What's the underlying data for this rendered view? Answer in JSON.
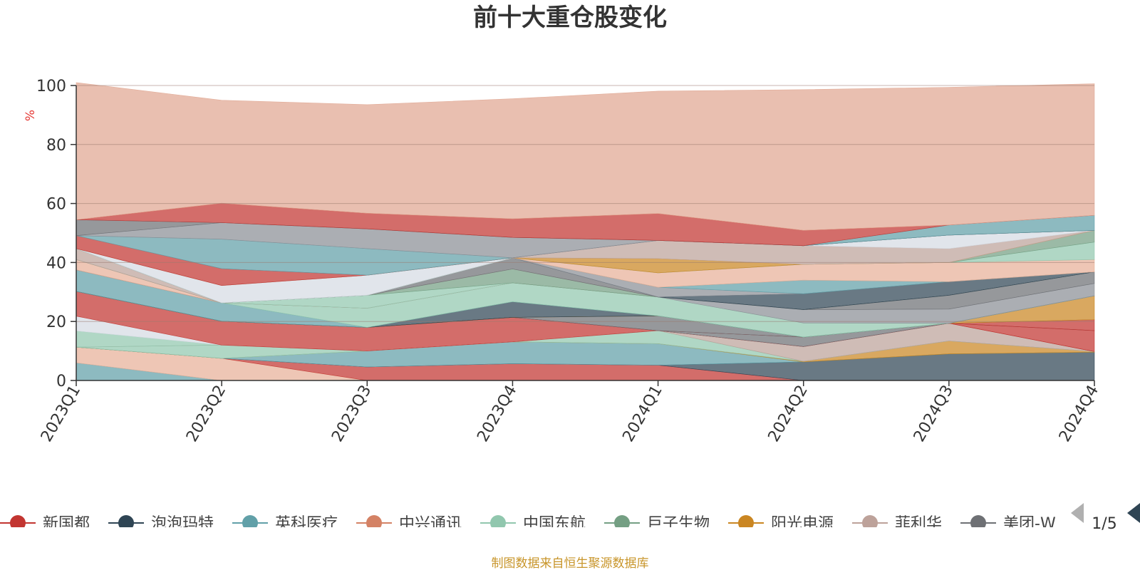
{
  "chart_data": {
    "type": "area",
    "title": "前十大重仓股变化",
    "ylabel": "%",
    "ylim": [
      0,
      100
    ],
    "y_ticks": [
      0,
      20,
      40,
      60,
      80,
      100
    ],
    "categories": [
      "2023Q1",
      "2023Q2",
      "2023Q3",
      "2023Q4",
      "2024Q1",
      "2024Q2",
      "2024Q3",
      "2024Q4"
    ],
    "stacked_to_100": true,
    "grid": true,
    "legend_position": "bottom",
    "source": "制图数据来自恒生聚源数据库",
    "legend_page": "1/5",
    "series": [
      {
        "name": "新国都",
        "color": "#c23531"
      },
      {
        "name": "泡泡玛特",
        "color": "#2f4554"
      },
      {
        "name": "英科医疗",
        "color": "#61a0a8"
      },
      {
        "name": "中兴通讯",
        "color": "#d48265"
      },
      {
        "name": "中国东航",
        "color": "#91c7ae"
      },
      {
        "name": "巨子生物",
        "color": "#749f83"
      },
      {
        "name": "阳光电源",
        "color": "#ca8622"
      },
      {
        "name": "菲利华",
        "color": "#bda29a"
      },
      {
        "name": "美团-W",
        "color": "#6e7074"
      }
    ],
    "bands": [
      {
        "color": "#61a0a8",
        "values": [
          6,
          0,
          0,
          0,
          0,
          0,
          0,
          0
        ]
      },
      {
        "color": "#e8b098",
        "values": [
          5.3,
          7.5,
          0,
          0,
          0,
          0,
          0,
          0
        ]
      },
      {
        "color": "#c23531",
        "values": [
          0,
          0,
          4.6,
          5.7,
          5.2,
          0,
          0,
          0
        ]
      },
      {
        "color": "#2f4554",
        "values": [
          0,
          0,
          0,
          0,
          0,
          6.3,
          9,
          9.6
        ]
      },
      {
        "color": "#61a0a8",
        "values": [
          0,
          0,
          5.4,
          7.4,
          7.3,
          0,
          0,
          0
        ]
      },
      {
        "color": "#ca8622",
        "values": [
          0,
          0,
          0,
          0,
          0,
          0.2,
          4.4,
          0.2
        ]
      },
      {
        "color": "#91c7ae",
        "values": [
          0,
          0,
          0,
          0,
          4.4,
          0,
          0,
          0
        ]
      },
      {
        "color": "#91c7ae",
        "values": [
          0,
          4.5,
          0,
          0,
          0,
          0,
          0,
          0
        ]
      },
      {
        "color": "#bda29a",
        "values": [
          0,
          0,
          0,
          0,
          0,
          5,
          6,
          0
        ]
      },
      {
        "color": "#91c7ae",
        "values": [
          5.5,
          0,
          0,
          0,
          0,
          0,
          0,
          0
        ]
      },
      {
        "color": "#d6dbe3",
        "values": [
          5,
          0,
          0,
          0,
          0,
          0,
          0,
          0
        ]
      },
      {
        "color": "#c23531",
        "values": [
          8.4,
          8.1,
          8,
          8.3,
          0,
          0,
          0,
          0
        ]
      },
      {
        "color": "#c23531",
        "values": [
          0,
          0,
          0,
          0,
          0,
          0,
          0,
          7.1
        ]
      },
      {
        "color": "#6e7074",
        "values": [
          0,
          0,
          0,
          0,
          0,
          3.2,
          0,
          0
        ]
      },
      {
        "color": "#c23531",
        "values": [
          0,
          0,
          0,
          0,
          0,
          0,
          0,
          3.7
        ]
      },
      {
        "color": "#6e7074",
        "values": [
          0,
          0,
          0,
          0,
          5,
          0,
          0,
          0
        ]
      },
      {
        "color": "#ca8622",
        "values": [
          0,
          0,
          0,
          0,
          0,
          0,
          0,
          8.1
        ]
      },
      {
        "color": "#2f4554",
        "values": [
          0,
          0,
          0,
          5.3,
          0,
          0,
          0,
          0
        ]
      },
      {
        "color": "#61a0a8",
        "values": [
          7.3,
          6.2,
          0,
          0,
          0,
          0,
          0,
          0
        ]
      },
      {
        "color": "#91c7ae",
        "values": [
          0,
          0,
          6.5,
          6.4,
          6.4,
          4.8,
          0,
          0
        ]
      },
      {
        "color": "#8b8f96",
        "values": [
          0,
          0,
          0,
          0,
          0,
          4.5,
          4.8,
          4.2
        ]
      },
      {
        "color": "#6e7074",
        "values": [
          0,
          0,
          0,
          0,
          0,
          0,
          4.7,
          3.9
        ]
      },
      {
        "color": "#e8b098",
        "values": [
          3.5,
          0,
          0,
          0,
          0,
          0,
          0,
          0
        ]
      },
      {
        "color": "#91c7ae",
        "values": [
          0,
          0,
          4.4,
          0,
          0,
          0,
          0,
          0
        ]
      },
      {
        "color": "#749f83",
        "values": [
          0,
          0,
          0,
          4.7,
          0,
          0,
          0,
          0
        ]
      },
      {
        "color": "#bda29a",
        "values": [
          3.7,
          0,
          0,
          0,
          0,
          0,
          0,
          0
        ]
      },
      {
        "color": "#6e7074",
        "values": [
          0,
          0,
          0,
          3.8,
          0,
          0,
          0,
          0
        ]
      },
      {
        "color": "#2f4554",
        "values": [
          0,
          0,
          0,
          0,
          0,
          5.4,
          4.6,
          0
        ]
      },
      {
        "color": "#8b8f96",
        "values": [
          0,
          0,
          0,
          0,
          3.3,
          0,
          0,
          0
        ]
      },
      {
        "color": "#61a0a8",
        "values": [
          0,
          0,
          0,
          0,
          0,
          4.6,
          0,
          0
        ]
      },
      {
        "color": "#e8b098",
        "values": [
          0,
          0,
          0,
          0,
          4.9,
          5.4,
          6.5,
          4.2
        ]
      },
      {
        "color": "#91c7ae",
        "values": [
          0,
          0,
          0,
          0,
          0,
          0,
          0,
          5.9
        ]
      },
      {
        "color": "#749f83",
        "values": [
          0,
          0,
          0,
          0,
          0,
          0,
          0,
          4
        ]
      },
      {
        "color": "#d6dbe3",
        "values": [
          0,
          5.9,
          6.8,
          0,
          0,
          0,
          0,
          0
        ]
      },
      {
        "color": "#ca8622",
        "values": [
          0,
          0,
          0,
          0,
          4.8,
          0,
          0,
          0
        ]
      },
      {
        "color": "#bda29a",
        "values": [
          0,
          0,
          0,
          0,
          6.2,
          6.3,
          4.7,
          0
        ]
      },
      {
        "color": "#d6dbe3",
        "values": [
          0,
          0,
          0,
          0,
          0,
          0,
          4.6,
          0
        ]
      },
      {
        "color": "#c23531",
        "values": [
          4.4,
          5.7,
          0,
          0,
          0,
          0,
          0,
          0
        ]
      },
      {
        "color": "#61a0a8",
        "values": [
          0,
          10,
          9,
          0,
          0,
          0,
          0,
          0
        ]
      },
      {
        "color": "#8b8f96",
        "values": [
          0,
          5.6,
          6.7,
          6.9,
          0,
          0,
          0,
          0
        ]
      },
      {
        "color": "#6e7074",
        "values": [
          5.4,
          0,
          0,
          0,
          0,
          0,
          0,
          0
        ]
      },
      {
        "color": "#61a0a8",
        "values": [
          0,
          0,
          0,
          0,
          0,
          0,
          3.4,
          5.1
        ]
      },
      {
        "color": "#c23531",
        "values": [
          0,
          6.6,
          5.3,
          6.3,
          9.1,
          5.2,
          0,
          0
        ]
      },
      {
        "color": "#e0a691",
        "values": [
          46.5,
          34.9,
          36.8,
          40.7,
          41.5,
          47.7,
          46.7,
          44.6
        ]
      }
    ]
  }
}
